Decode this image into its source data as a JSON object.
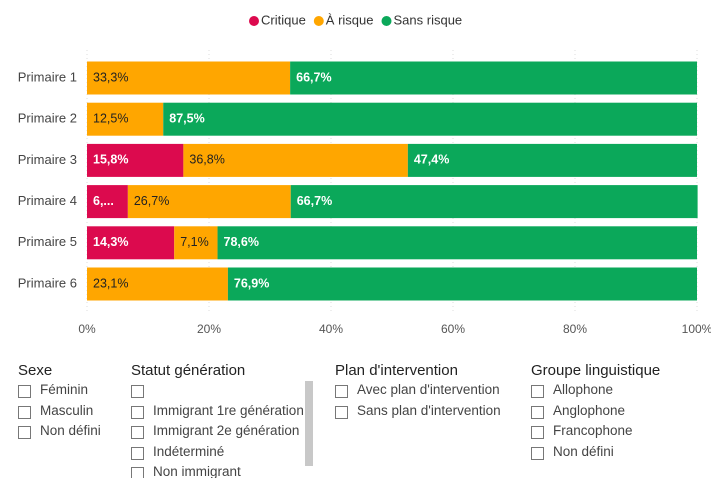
{
  "chart_data": {
    "type": "stacked-barh",
    "categories": [
      "Primaire 1",
      "Primaire 2",
      "Primaire 3",
      "Primaire 4",
      "Primaire 5",
      "Primaire 6"
    ],
    "series": [
      {
        "name": "Critique",
        "color": "#dc0a4e",
        "values": [
          null,
          null,
          15.8,
          6.7,
          14.3,
          null
        ],
        "value_labels": [
          null,
          null,
          "15,8%",
          "6,...",
          "14,3%",
          null
        ]
      },
      {
        "name": "À risque",
        "color": "#ffa600",
        "values": [
          33.3,
          12.5,
          36.8,
          26.7,
          7.1,
          23.1
        ],
        "value_labels": [
          "33,3%",
          "12,5%",
          "36,8%",
          "26,7%",
          "7,1%",
          "23,1%"
        ]
      },
      {
        "name": "Sans risque",
        "color": "#0ba85a",
        "values": [
          66.7,
          87.5,
          47.4,
          66.7,
          78.6,
          76.9
        ],
        "value_labels": [
          "66,7%",
          "87,5%",
          "47,4%",
          "66,7%",
          "78,6%",
          "76,9%"
        ]
      }
    ],
    "xlim": [
      0,
      100
    ],
    "xticks": [
      {
        "value": 0,
        "label": "0%"
      },
      {
        "value": 20,
        "label": "20%"
      },
      {
        "value": 40,
        "label": "40%"
      },
      {
        "value": 60,
        "label": "60%"
      },
      {
        "value": 80,
        "label": "80%"
      },
      {
        "value": 100,
        "label": "100%"
      }
    ],
    "legend": "top"
  },
  "slicers": [
    {
      "title": "Sexe",
      "items": [
        "Féminin",
        "Masculin",
        "Non défini"
      ]
    },
    {
      "title": "Statut génération",
      "items": [
        "Immigrant 1re génération",
        "Immigrant 2e génération",
        "Indéterminé",
        "Non immigrant"
      ]
    },
    {
      "title": "Plan d'intervention",
      "items": [
        "Avec plan d'intervention",
        "Sans plan d'intervention"
      ]
    },
    {
      "title": "Groupe linguistique",
      "items": [
        "Allophone",
        "Anglophone",
        "Francophone",
        "Non défini"
      ]
    }
  ]
}
